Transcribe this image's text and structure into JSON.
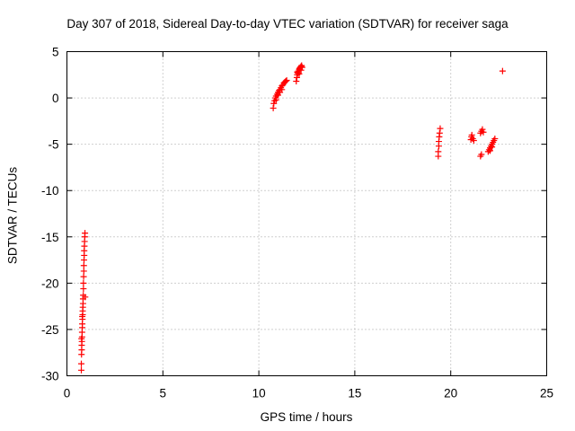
{
  "chart_data": {
    "type": "scatter",
    "title": "Day 307 of 2018, Sidereal Day-to-day VTEC variation (SDTVAR) for receiver saga",
    "xlabel": "GPS time / hours",
    "ylabel": "SDTVAR / TECUs",
    "xlim": [
      0,
      25
    ],
    "ylim": [
      -30,
      5
    ],
    "xticks": [
      0,
      5,
      10,
      15,
      20,
      25
    ],
    "yticks": [
      5,
      0,
      -5,
      -10,
      -15,
      -20,
      -25,
      -30
    ],
    "grid": true,
    "marker": "+",
    "color": "#ff0000",
    "series": [
      {
        "name": "saga",
        "points": [
          [
            0.75,
            -29.4
          ],
          [
            0.75,
            -28.7
          ],
          [
            0.76,
            -27.7
          ],
          [
            0.77,
            -27.2
          ],
          [
            0.77,
            -26.7
          ],
          [
            0.78,
            -26.3
          ],
          [
            0.79,
            -25.8
          ],
          [
            0.79,
            -25.3
          ],
          [
            0.8,
            -24.8
          ],
          [
            0.8,
            -24.4
          ],
          [
            0.81,
            -23.9
          ],
          [
            0.82,
            -23.4
          ],
          [
            0.82,
            -23
          ],
          [
            0.83,
            -22.6
          ],
          [
            0.84,
            -22.2
          ],
          [
            0.84,
            -21.7
          ],
          [
            0.85,
            -21.3
          ],
          [
            0.86,
            -20.6
          ],
          [
            0.86,
            -20
          ],
          [
            0.87,
            -19.3
          ],
          [
            0.88,
            -18.7
          ],
          [
            0.88,
            -18.1
          ],
          [
            0.89,
            -17.5
          ],
          [
            0.9,
            -17
          ],
          [
            0.9,
            -16.5
          ],
          [
            0.91,
            -16
          ],
          [
            0.92,
            -15.5
          ],
          [
            0.93,
            -15
          ],
          [
            0.94,
            -14.6
          ],
          [
            0.76,
            -26
          ],
          [
            0.8,
            -23.6
          ],
          [
            0.95,
            -21.5
          ],
          [
            10.75,
            -1.1
          ],
          [
            10.78,
            -0.6
          ],
          [
            10.82,
            -0.3
          ],
          [
            10.86,
            0
          ],
          [
            10.9,
            0.2
          ],
          [
            10.95,
            0.4
          ],
          [
            11.0,
            0.6
          ],
          [
            11.05,
            0.8
          ],
          [
            11.1,
            0.9
          ],
          [
            11.15,
            1.1
          ],
          [
            11.2,
            1.3
          ],
          [
            11.25,
            1.4
          ],
          [
            11.3,
            1.6
          ],
          [
            11.35,
            1.7
          ],
          [
            11.4,
            1.8
          ],
          [
            11.45,
            1.9
          ],
          [
            10.9,
            -0.2
          ],
          [
            11.0,
            0.3
          ],
          [
            11.1,
            0.6
          ],
          [
            11.2,
            0.9
          ],
          [
            11.95,
            1.8
          ],
          [
            11.98,
            2.2
          ],
          [
            12.0,
            2.5
          ],
          [
            12.03,
            2.7
          ],
          [
            12.06,
            2.9
          ],
          [
            12.1,
            3.1
          ],
          [
            12.13,
            3.2
          ],
          [
            12.16,
            3.3
          ],
          [
            12.2,
            3.4
          ],
          [
            12.23,
            3.5
          ],
          [
            12.26,
            3.3
          ],
          [
            12.0,
            2.8
          ],
          [
            12.1,
            2.6
          ],
          [
            12.2,
            3.0
          ],
          [
            19.35,
            -6.3
          ],
          [
            19.35,
            -5.8
          ],
          [
            19.38,
            -5.2
          ],
          [
            19.38,
            -4.7
          ],
          [
            19.4,
            -4.2
          ],
          [
            19.42,
            -3.8
          ],
          [
            19.45,
            -3.3
          ],
          [
            21.05,
            -4.5
          ],
          [
            21.08,
            -4.2
          ],
          [
            21.1,
            -4.0
          ],
          [
            21.15,
            -4.4
          ],
          [
            21.2,
            -4.6
          ],
          [
            21.55,
            -6.3
          ],
          [
            21.6,
            -6.1
          ],
          [
            21.55,
            -3.8
          ],
          [
            21.6,
            -3.6
          ],
          [
            21.65,
            -3.4
          ],
          [
            21.7,
            -3.7
          ],
          [
            21.95,
            -5.8
          ],
          [
            22.0,
            -5.6
          ],
          [
            22.05,
            -5.4
          ],
          [
            22.1,
            -5.2
          ],
          [
            22.15,
            -5.0
          ],
          [
            22.2,
            -4.8
          ],
          [
            22.25,
            -4.6
          ],
          [
            22.3,
            -4.4
          ],
          [
            22.05,
            -5.7
          ],
          [
            22.15,
            -5.3
          ],
          [
            22.7,
            2.9
          ]
        ]
      }
    ]
  }
}
